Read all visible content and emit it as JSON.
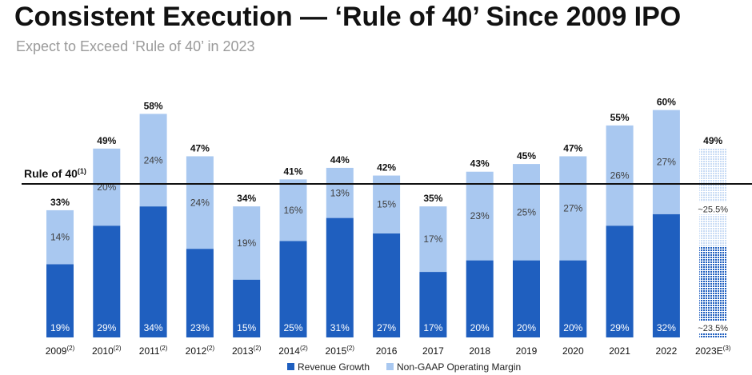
{
  "header": {
    "title": "Consistent Execution — ‘Rule of 40’ Since 2009 IPO",
    "subtitle": "Expect to Exceed ‘Rule of 40’ in 2023"
  },
  "chart_data": {
    "type": "bar",
    "stacked": true,
    "title": "Consistent Execution — ‘Rule of 40’ Since 2009 IPO",
    "subtitle": "Expect to Exceed ‘Rule of 40’ in 2023",
    "xlabel": "",
    "ylabel": "",
    "ylim": [
      0,
      62
    ],
    "grid": false,
    "legend_position": "bottom",
    "categories": [
      {
        "label": "2009",
        "note": "(2)"
      },
      {
        "label": "2010",
        "note": "(2)"
      },
      {
        "label": "2011",
        "note": "(2)"
      },
      {
        "label": "2012",
        "note": "(2)"
      },
      {
        "label": "2013",
        "note": "(2)"
      },
      {
        "label": "2014",
        "note": "(2)"
      },
      {
        "label": "2015",
        "note": "(2)"
      },
      {
        "label": "2016",
        "note": ""
      },
      {
        "label": "2017",
        "note": ""
      },
      {
        "label": "2018",
        "note": ""
      },
      {
        "label": "2019",
        "note": ""
      },
      {
        "label": "2020",
        "note": ""
      },
      {
        "label": "2021",
        "note": ""
      },
      {
        "label": "2022",
        "note": ""
      },
      {
        "label": "2023E",
        "note": "(3)"
      }
    ],
    "series": [
      {
        "name": "Revenue Growth",
        "color": "#1f5fbf",
        "values": [
          19,
          29,
          34,
          23,
          15,
          25,
          31,
          27,
          17,
          20,
          20,
          20,
          29,
          32,
          23.5
        ],
        "labels": [
          "19%",
          "29%",
          "34%",
          "23%",
          "15%",
          "25%",
          "31%",
          "27%",
          "17%",
          "20%",
          "20%",
          "20%",
          "29%",
          "32%",
          "~23.5%"
        ]
      },
      {
        "name": "Non-GAAP Operating Margin",
        "color": "#a9c8f0",
        "values": [
          14,
          20,
          24,
          24,
          19,
          16,
          13,
          15,
          17,
          23,
          25,
          27,
          26,
          27,
          25.5
        ],
        "labels": [
          "14%",
          "20%",
          "24%",
          "24%",
          "19%",
          "16%",
          "13%",
          "15%",
          "17%",
          "23%",
          "25%",
          "27%",
          "26%",
          "27%",
          "~25.5%"
        ]
      }
    ],
    "totals": [
      33,
      49,
      58,
      47,
      34,
      41,
      44,
      42,
      35,
      43,
      45,
      47,
      55,
      60,
      49
    ],
    "total_labels": [
      "33%",
      "49%",
      "58%",
      "47%",
      "34%",
      "41%",
      "44%",
      "42%",
      "35%",
      "43%",
      "45%",
      "47%",
      "55%",
      "60%",
      "49%"
    ],
    "estimate_index": 14,
    "reference_line": {
      "value": 40,
      "label": "Rule of 40",
      "note": "(1)",
      "color": "#111111"
    }
  }
}
